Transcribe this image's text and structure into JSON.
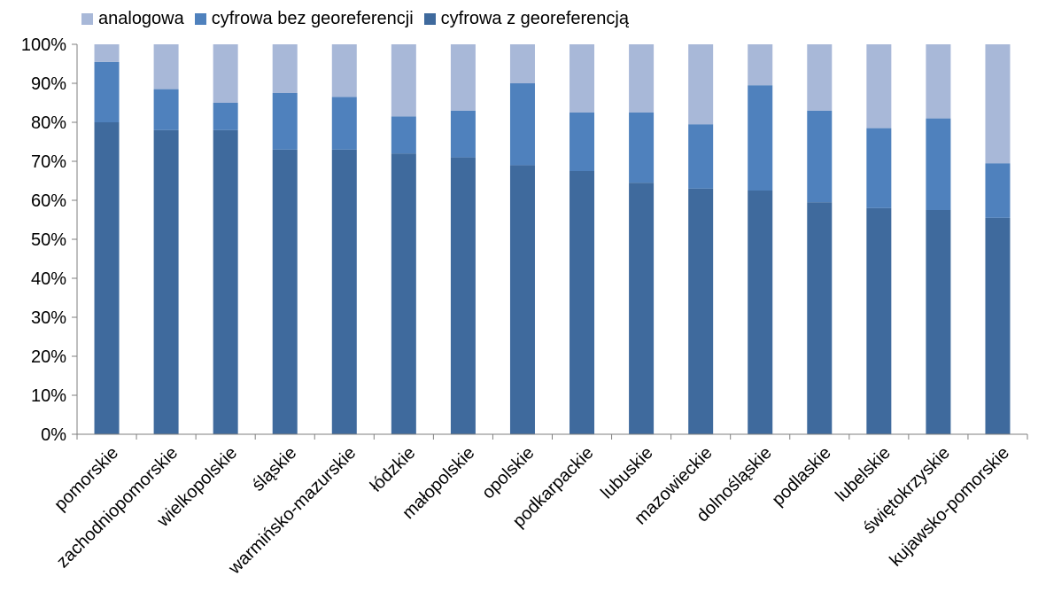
{
  "chart_data": {
    "type": "bar",
    "stacked": true,
    "percent": true,
    "categories": [
      "pomorskie",
      "zachodniopomorskie",
      "wielkopolskie",
      "śląskie",
      "warmińsko-mazurskie",
      "łódzkie",
      "małopolskie",
      "opolskie",
      "podkarpackie",
      "lubuskie",
      "mazowieckie",
      "dolnośląskie",
      "podlaskie",
      "lubelskie",
      "świętokrzyskie",
      "kujawsko-pomorskie"
    ],
    "series": [
      {
        "name": "cyfrowa z georeferencją",
        "color": "#3f6a9d",
        "values": [
          80,
          78,
          78,
          73,
          73,
          72,
          71,
          69,
          67.5,
          64.5,
          63,
          62.5,
          59.5,
          58,
          57.5,
          55.5
        ]
      },
      {
        "name": "cyfrowa bez georeferencji",
        "color": "#4f81bd",
        "values": [
          15.5,
          10.5,
          7,
          14.5,
          13.5,
          9.5,
          12,
          21,
          15,
          18,
          16.5,
          27,
          23.5,
          20.5,
          23.5,
          14
        ]
      },
      {
        "name": "analogowa",
        "color": "#a8b8d8",
        "values": [
          4.5,
          11.5,
          15,
          12.5,
          13.5,
          18.5,
          17,
          10,
          17.5,
          17.5,
          20.5,
          10.5,
          17,
          21.5,
          19,
          30.5
        ]
      }
    ],
    "legend_order": [
      "analogowa",
      "cyfrowa bez georeferencji",
      "cyfrowa z georeferencją"
    ],
    "legend_position": "top-left",
    "ylim": [
      0,
      100
    ],
    "yticks": [
      "0%",
      "10%",
      "20%",
      "30%",
      "40%",
      "50%",
      "60%",
      "70%",
      "80%",
      "90%",
      "100%"
    ],
    "grid": false,
    "title": "",
    "xlabel": "",
    "ylabel": ""
  }
}
